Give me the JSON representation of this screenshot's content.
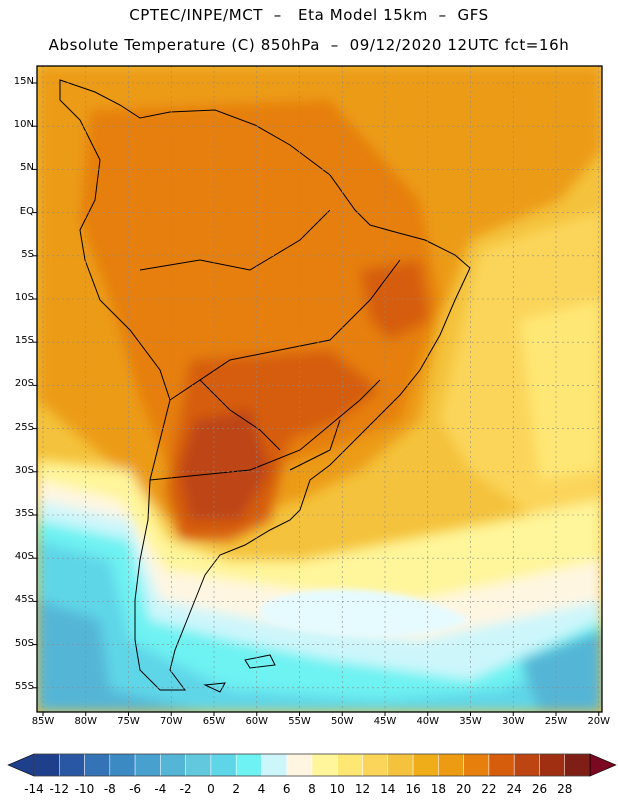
{
  "map": {
    "title_line1": "CPTEC/INPE/MCT  –   Eta Model 15km  –  GFS",
    "title_line2": "Absolute Temperature (C) 850hPa  –  09/12/2020 12UTC fct=16h",
    "region": "South America",
    "variable": "Absolute Temperature",
    "units": "C",
    "level": "850hPa",
    "model": "Eta Model 15km – GFS",
    "institution": "CPTEC/INPE/MCT",
    "init_date": "09/12/2020",
    "init_time": "12UTC",
    "forecast": "fct=16h",
    "lat_labels": [
      "15N",
      "10N",
      "5N",
      "EQ",
      "5S",
      "10S",
      "15S",
      "20S",
      "25S",
      "30S",
      "35S",
      "40S",
      "45S",
      "50S",
      "55S"
    ],
    "lon_labels": [
      "85W",
      "80W",
      "75W",
      "70W",
      "65W",
      "60W",
      "55W",
      "50W",
      "45W",
      "40W",
      "35W",
      "30W",
      "25W",
      "20W"
    ],
    "colorbar": {
      "labels": [
        "-14",
        "-12",
        "-10",
        "-8",
        "-6",
        "-4",
        "-2",
        "0",
        "2",
        "4",
        "6",
        "8",
        "10",
        "12",
        "14",
        "16",
        "18",
        "20",
        "22",
        "24",
        "26",
        "28"
      ],
      "colors": [
        "#1e3f8c",
        "#2a57a3",
        "#3473b5",
        "#3c8ac3",
        "#48a0ce",
        "#55b5d6",
        "#61c8de",
        "#5ed6e8",
        "#6ef2f2",
        "#cdf6fb",
        "#fff6e2",
        "#fff59a",
        "#ffe774",
        "#fbd55a",
        "#f4c23c",
        "#f0ad1a",
        "#ec9b12",
        "#e67f0c",
        "#d65d0c",
        "#bd4512",
        "#a02f12",
        "#7f1e14"
      ]
    },
    "colors": {
      "ocean_cold": "#5ed6e8",
      "warm_ocean": "#f4c23c",
      "land_hot": "#d65d0c"
    }
  }
}
